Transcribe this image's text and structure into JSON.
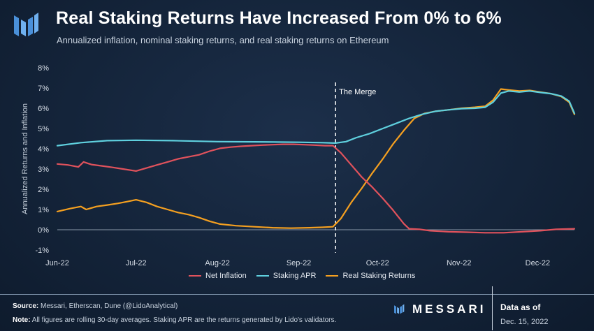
{
  "header": {
    "title": "Real Staking Returns Have Increased From 0% to 6%",
    "subtitle": "Annualized inflation, nominal staking returns, and real staking returns on Ethereum"
  },
  "footer": {
    "source_label": "Source:",
    "source_text": " Messari, Etherscan, Dune (@LidoAnalytical)",
    "note_label": "Note:",
    "note_text": " All figures are rolling 30-day averages. Staking APR are the returns generated by Lido's validators.",
    "brand": "MESSARI",
    "data_as_of_label": "Data as of",
    "data_as_of_date": "Dec. 15, 2022"
  },
  "colors": {
    "net_inflation": "#e0525c",
    "staking_apr": "#5fd0de",
    "real_staking_returns": "#f5a020",
    "merge_line": "#ffffff",
    "background": "#14243a",
    "logo": "#4a90d9"
  },
  "chart_data": {
    "type": "line",
    "title": "Real Staking Returns Have Increased From 0% to 6%",
    "ylabel": "Annualized Returns and Inflation",
    "xlabel": "",
    "ylim": [
      -1,
      8
    ],
    "y_ticks": [
      "-1%",
      "0%",
      "1%",
      "2%",
      "3%",
      "4%",
      "5%",
      "6%",
      "7%",
      "8%"
    ],
    "x_ticks": [
      "Jun-22",
      "Jul-22",
      "Aug-22",
      "Sep-22",
      "Oct-22",
      "Nov-22",
      "Dec-22"
    ],
    "x_tick_dates": [
      "2022-06-01",
      "2022-07-01",
      "2022-08-01",
      "2022-09-01",
      "2022-10-01",
      "2022-11-01",
      "2022-12-01"
    ],
    "x_range": [
      "2022-06-01",
      "2022-12-15"
    ],
    "legend_position": "bottom",
    "grid": false,
    "annotations": [
      {
        "label": "The Merge",
        "date": "2022-09-15"
      }
    ],
    "series": [
      {
        "name": "Net Inflation",
        "points": [
          [
            "2022-06-01",
            3.25
          ],
          [
            "2022-06-05",
            3.2
          ],
          [
            "2022-06-09",
            3.1
          ],
          [
            "2022-06-11",
            3.35
          ],
          [
            "2022-06-14",
            3.22
          ],
          [
            "2022-06-18",
            3.15
          ],
          [
            "2022-06-22",
            3.08
          ],
          [
            "2022-06-26",
            3.0
          ],
          [
            "2022-07-01",
            2.9
          ],
          [
            "2022-07-05",
            3.05
          ],
          [
            "2022-07-09",
            3.2
          ],
          [
            "2022-07-13",
            3.35
          ],
          [
            "2022-07-17",
            3.5
          ],
          [
            "2022-07-21",
            3.6
          ],
          [
            "2022-07-25",
            3.7
          ],
          [
            "2022-07-29",
            3.88
          ],
          [
            "2022-08-02",
            4.02
          ],
          [
            "2022-08-06",
            4.08
          ],
          [
            "2022-08-10",
            4.12
          ],
          [
            "2022-08-14",
            4.15
          ],
          [
            "2022-08-18",
            4.18
          ],
          [
            "2022-08-22",
            4.2
          ],
          [
            "2022-08-26",
            4.22
          ],
          [
            "2022-08-30",
            4.22
          ],
          [
            "2022-09-03",
            4.2
          ],
          [
            "2022-09-07",
            4.18
          ],
          [
            "2022-09-11",
            4.15
          ],
          [
            "2022-09-14",
            4.15
          ],
          [
            "2022-09-17",
            3.8
          ],
          [
            "2022-09-21",
            3.2
          ],
          [
            "2022-09-25",
            2.6
          ],
          [
            "2022-09-29",
            2.1
          ],
          [
            "2022-10-03",
            1.55
          ],
          [
            "2022-10-07",
            0.95
          ],
          [
            "2022-10-11",
            0.3
          ],
          [
            "2022-10-13",
            0.05
          ],
          [
            "2022-10-17",
            0.02
          ],
          [
            "2022-10-21",
            -0.05
          ],
          [
            "2022-10-28",
            -0.1
          ],
          [
            "2022-11-04",
            -0.12
          ],
          [
            "2022-11-11",
            -0.15
          ],
          [
            "2022-11-18",
            -0.15
          ],
          [
            "2022-11-25",
            -0.1
          ],
          [
            "2022-12-02",
            -0.05
          ],
          [
            "2022-12-08",
            0.02
          ],
          [
            "2022-12-15",
            0.05
          ]
        ]
      },
      {
        "name": "Staking APR",
        "points": [
          [
            "2022-06-01",
            4.15
          ],
          [
            "2022-06-10",
            4.3
          ],
          [
            "2022-06-20",
            4.4
          ],
          [
            "2022-07-01",
            4.42
          ],
          [
            "2022-07-15",
            4.4
          ],
          [
            "2022-08-01",
            4.35
          ],
          [
            "2022-08-15",
            4.34
          ],
          [
            "2022-09-01",
            4.32
          ],
          [
            "2022-09-10",
            4.3
          ],
          [
            "2022-09-15",
            4.28
          ],
          [
            "2022-09-19",
            4.35
          ],
          [
            "2022-09-23",
            4.55
          ],
          [
            "2022-09-28",
            4.75
          ],
          [
            "2022-10-03",
            5.0
          ],
          [
            "2022-10-08",
            5.25
          ],
          [
            "2022-10-13",
            5.5
          ],
          [
            "2022-10-18",
            5.7
          ],
          [
            "2022-10-23",
            5.85
          ],
          [
            "2022-10-28",
            5.92
          ],
          [
            "2022-11-02",
            5.98
          ],
          [
            "2022-11-07",
            6.0
          ],
          [
            "2022-11-11",
            6.05
          ],
          [
            "2022-11-14",
            6.3
          ],
          [
            "2022-11-17",
            6.75
          ],
          [
            "2022-11-20",
            6.85
          ],
          [
            "2022-11-24",
            6.8
          ],
          [
            "2022-11-28",
            6.85
          ],
          [
            "2022-12-02",
            6.78
          ],
          [
            "2022-12-06",
            6.72
          ],
          [
            "2022-12-10",
            6.6
          ],
          [
            "2022-12-13",
            6.35
          ],
          [
            "2022-12-15",
            5.75
          ]
        ]
      },
      {
        "name": "Real Staking Returns",
        "points": [
          [
            "2022-06-01",
            0.9
          ],
          [
            "2022-06-06",
            1.05
          ],
          [
            "2022-06-10",
            1.15
          ],
          [
            "2022-06-12",
            1.0
          ],
          [
            "2022-06-16",
            1.15
          ],
          [
            "2022-06-20",
            1.22
          ],
          [
            "2022-06-24",
            1.3
          ],
          [
            "2022-06-28",
            1.4
          ],
          [
            "2022-07-01",
            1.48
          ],
          [
            "2022-07-05",
            1.35
          ],
          [
            "2022-07-09",
            1.15
          ],
          [
            "2022-07-13",
            1.0
          ],
          [
            "2022-07-17",
            0.85
          ],
          [
            "2022-07-21",
            0.75
          ],
          [
            "2022-07-25",
            0.6
          ],
          [
            "2022-07-29",
            0.42
          ],
          [
            "2022-08-02",
            0.28
          ],
          [
            "2022-08-08",
            0.2
          ],
          [
            "2022-08-15",
            0.15
          ],
          [
            "2022-08-22",
            0.1
          ],
          [
            "2022-08-29",
            0.08
          ],
          [
            "2022-09-05",
            0.1
          ],
          [
            "2022-09-10",
            0.12
          ],
          [
            "2022-09-14",
            0.15
          ],
          [
            "2022-09-17",
            0.55
          ],
          [
            "2022-09-21",
            1.35
          ],
          [
            "2022-09-25",
            2.05
          ],
          [
            "2022-09-29",
            2.8
          ],
          [
            "2022-10-03",
            3.5
          ],
          [
            "2022-10-07",
            4.25
          ],
          [
            "2022-10-11",
            4.9
          ],
          [
            "2022-10-15",
            5.5
          ],
          [
            "2022-10-19",
            5.75
          ],
          [
            "2022-10-23",
            5.85
          ],
          [
            "2022-10-28",
            5.92
          ],
          [
            "2022-11-02",
            6.0
          ],
          [
            "2022-11-07",
            6.05
          ],
          [
            "2022-11-11",
            6.1
          ],
          [
            "2022-11-14",
            6.4
          ],
          [
            "2022-11-17",
            6.95
          ],
          [
            "2022-11-20",
            6.9
          ],
          [
            "2022-11-24",
            6.85
          ],
          [
            "2022-11-28",
            6.88
          ],
          [
            "2022-12-02",
            6.8
          ],
          [
            "2022-12-06",
            6.72
          ],
          [
            "2022-12-10",
            6.58
          ],
          [
            "2022-12-13",
            6.3
          ],
          [
            "2022-12-15",
            5.7
          ]
        ]
      }
    ]
  }
}
